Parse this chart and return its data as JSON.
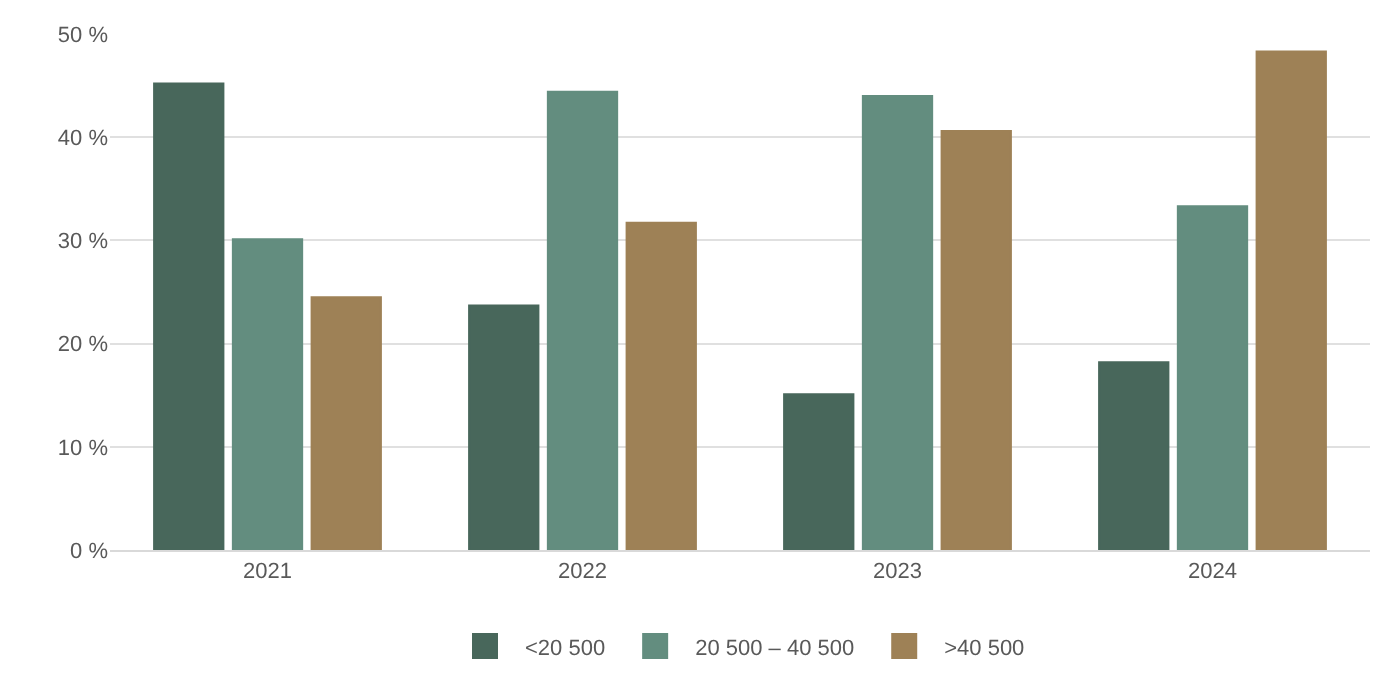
{
  "chart_data": {
    "type": "bar",
    "categories": [
      "2021",
      "2022",
      "2023",
      "2024"
    ],
    "series": [
      {
        "name": "<20 500",
        "color": "#48675b",
        "values": [
          45.2,
          23.7,
          15.1,
          18.2
        ]
      },
      {
        "name": "20 500 – 40 500",
        "color": "#638d7f",
        "values": [
          30.1,
          44.4,
          44.0,
          33.3
        ]
      },
      {
        "name": ">40 500",
        "color": "#9e8156",
        "values": [
          24.5,
          31.7,
          40.6,
          48.3
        ]
      }
    ],
    "ylim": [
      0,
      50
    ],
    "yticks": [
      {
        "value": 0,
        "label": "0 %"
      },
      {
        "value": 10,
        "label": "10 %"
      },
      {
        "value": 20,
        "label": "20 %"
      },
      {
        "value": 30,
        "label": "30 %"
      },
      {
        "value": 40,
        "label": "40 %"
      },
      {
        "value": 50,
        "label": "50 %"
      }
    ],
    "grid": "y",
    "legend": "bottom"
  }
}
